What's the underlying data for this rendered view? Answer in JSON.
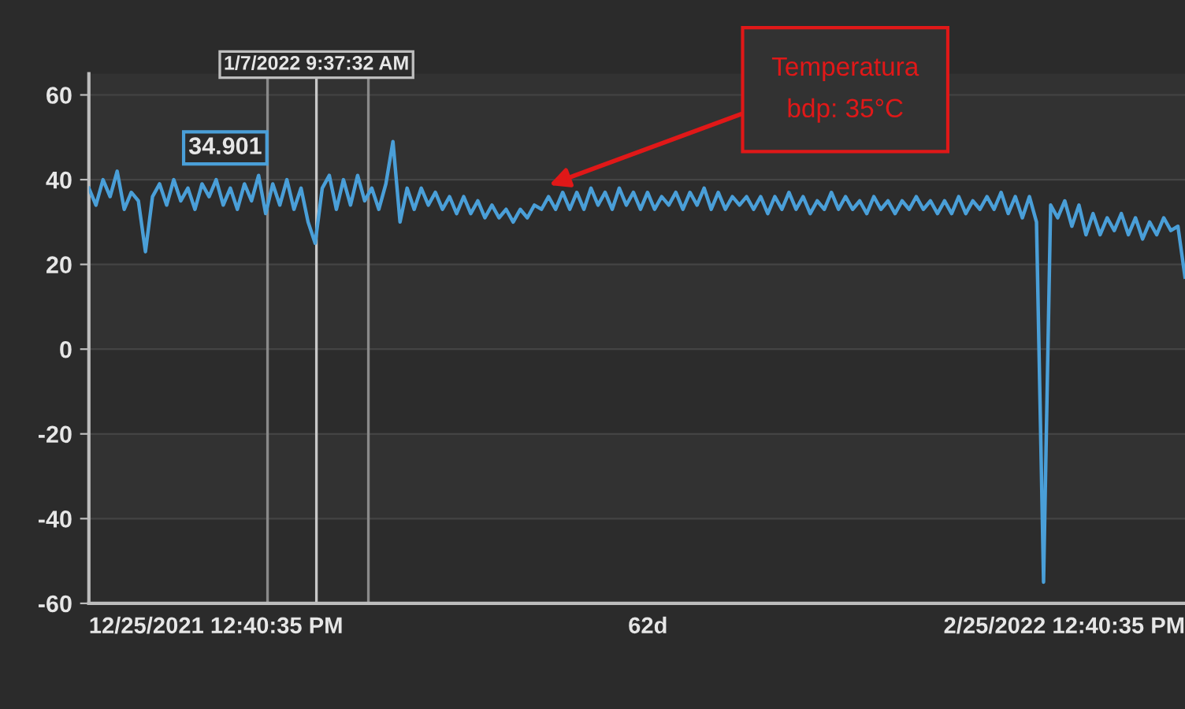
{
  "chart_data": {
    "type": "line",
    "ylim": [
      -60,
      65
    ],
    "yticks": [
      -60,
      -40,
      -20,
      0,
      20,
      40,
      60
    ],
    "categories": [
      null,
      null,
      null,
      null,
      null,
      null,
      null,
      null,
      null,
      null,
      null,
      null,
      null,
      null,
      null,
      null,
      null,
      null,
      null,
      null,
      null,
      null,
      null,
      null,
      null,
      null,
      null,
      null,
      null,
      null,
      null,
      null,
      null,
      null,
      null,
      null,
      null,
      null,
      null,
      null,
      null,
      null,
      null,
      null,
      null,
      null,
      null,
      null,
      null,
      null,
      null,
      null,
      null,
      null,
      null,
      null,
      null,
      null,
      null,
      null,
      null,
      null,
      null,
      null,
      null,
      null,
      null,
      null,
      null,
      null,
      null,
      null,
      null,
      null,
      null,
      null,
      null,
      null,
      null,
      null,
      null,
      null,
      null,
      null,
      null,
      null,
      null,
      null,
      null,
      null,
      null,
      null,
      null,
      null,
      null,
      null,
      null,
      null,
      null,
      null,
      null,
      null,
      null,
      null,
      null,
      null,
      null,
      null,
      null,
      null,
      null,
      null,
      null,
      null,
      null,
      null,
      null,
      null,
      null,
      null,
      null,
      null,
      null,
      null,
      null,
      null,
      null,
      null,
      null,
      null,
      null,
      null,
      null,
      null,
      null,
      null,
      null,
      null,
      null,
      null,
      null,
      null,
      null,
      null,
      null,
      null,
      null,
      null,
      null,
      null,
      null,
      null,
      null,
      null,
      null,
      null
    ],
    "grid": "y",
    "marker": "none",
    "line_style": "solid",
    "series": [
      {
        "color": "#4a9fd8",
        "values": [
          38,
          34,
          40,
          36,
          42,
          33,
          37,
          35,
          23,
          36,
          39,
          34,
          40,
          35,
          38,
          33,
          39,
          36,
          40,
          34,
          38,
          33,
          39,
          35,
          41,
          32,
          39,
          34,
          40,
          33,
          38,
          30,
          25,
          38,
          41,
          33,
          40,
          34,
          41,
          35,
          38,
          33,
          39,
          49,
          30,
          38,
          33,
          38,
          34,
          37,
          33,
          36,
          32,
          36,
          32,
          35,
          31,
          34,
          31,
          33,
          30,
          33,
          31,
          34,
          33,
          36,
          33,
          37,
          33,
          37,
          33,
          38,
          34,
          37,
          33,
          38,
          34,
          37,
          33,
          37,
          33,
          36,
          34,
          37,
          33,
          37,
          34,
          38,
          33,
          37,
          33,
          36,
          34,
          36,
          33,
          36,
          32,
          36,
          33,
          37,
          33,
          36,
          32,
          35,
          33,
          37,
          33,
          36,
          33,
          35,
          32,
          36,
          33,
          35,
          32,
          35,
          33,
          36,
          33,
          35,
          32,
          35,
          32,
          36,
          32,
          35,
          33,
          36,
          33,
          37,
          32,
          36,
          31,
          36,
          30,
          -55,
          34,
          31,
          35,
          29,
          34,
          27,
          32,
          27,
          31,
          28,
          32,
          27,
          31,
          26,
          30,
          27,
          31,
          28,
          29,
          17
        ]
      }
    ],
    "annotations": [
      "1/7/2022 9:37:32 AM",
      "34.901",
      "Temperatura\nbdp: 35°C",
      "12/25/2021 12:40:35 PM",
      "62d",
      "2/25/2022 12:40:35 PM"
    ]
  }
}
